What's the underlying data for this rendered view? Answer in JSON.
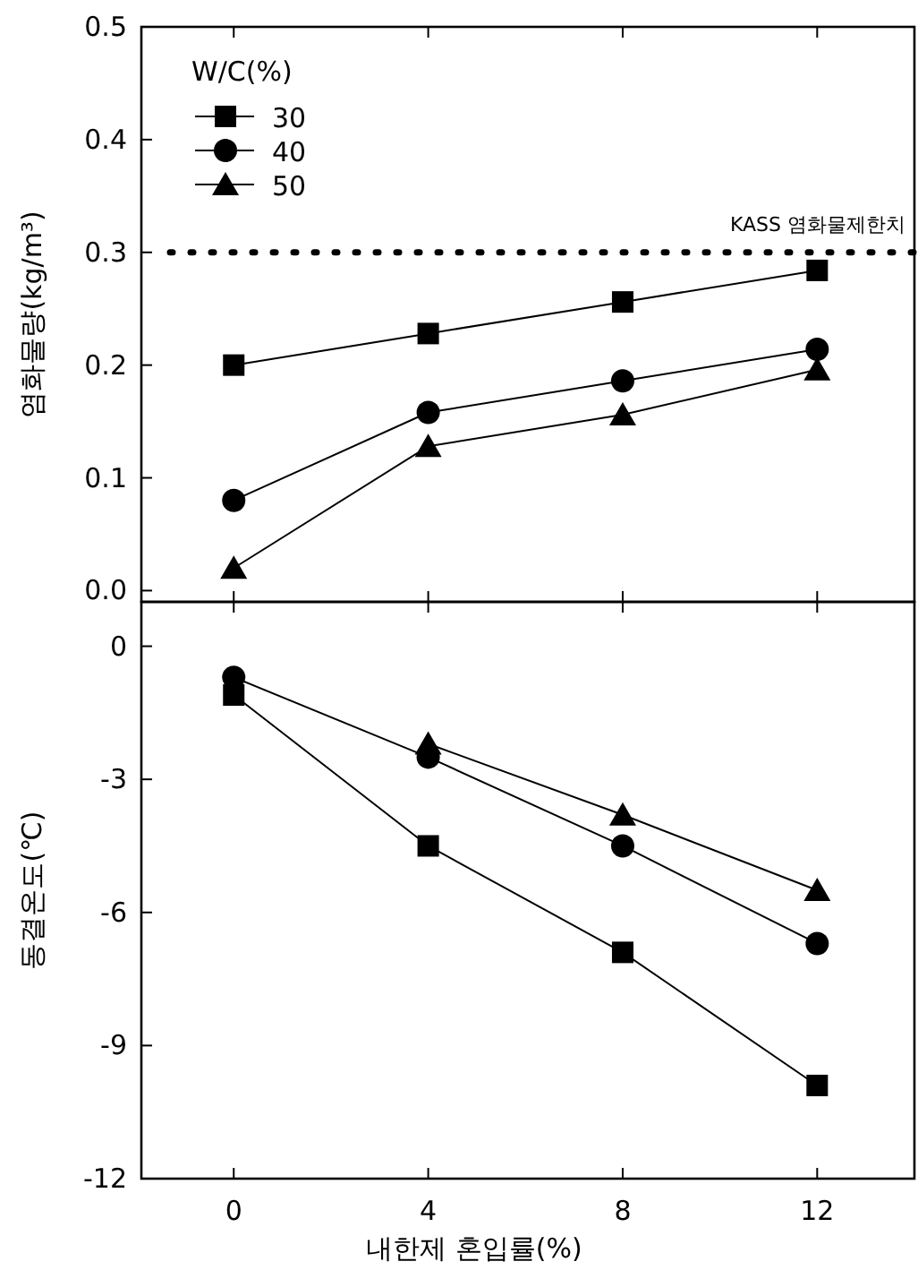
{
  "chart_data": [
    {
      "type": "line",
      "ylabel": "염화물량(kg/m³)",
      "legend_title": "W/C(%)",
      "legend": "top left",
      "tick_labels": "y",
      "x": [
        0,
        4,
        8,
        12
      ],
      "xlim": [
        -1.9,
        14
      ],
      "xticks": [
        {
          "value": 0,
          "label": null
        },
        {
          "value": 4,
          "label": null
        },
        {
          "value": 8,
          "label": null
        },
        {
          "value": 12,
          "label": null
        }
      ],
      "ylim": [
        -0.01,
        0.5
      ],
      "yticks": [
        {
          "value": 0,
          "label": "0.0"
        },
        {
          "value": 0.1,
          "label": "0.1"
        },
        {
          "value": 0.2,
          "label": "0.2"
        },
        {
          "value": 0.3,
          "label": "0.3"
        },
        {
          "value": 0.4,
          "label": "0.4"
        },
        {
          "value": 0.5,
          "label": "0.5"
        }
      ],
      "ref_lines": [
        {
          "axis": "y",
          "value": 0.3,
          "label": "KASS 염화물제한치",
          "color": "#000000",
          "line_style": "dotted"
        }
      ],
      "series": [
        {
          "name": "30",
          "color": "#000000",
          "marker": "square",
          "values": [
            0.2,
            0.228,
            0.256,
            0.284
          ]
        },
        {
          "name": "40",
          "color": "#000000",
          "marker": "circle",
          "values": [
            0.08,
            0.158,
            0.186,
            0.214
          ]
        },
        {
          "name": "50",
          "color": "#000000",
          "marker": "triangle",
          "values": [
            0.02,
            0.128,
            0.156,
            0.196
          ]
        }
      ]
    },
    {
      "type": "line",
      "ylabel": "동결온도(℃)",
      "xlabel": "내한제 혼입률(%)",
      "x": [
        0,
        4,
        8,
        12
      ],
      "xlim": [
        -1.9,
        14
      ],
      "xticks": [
        0,
        4,
        8,
        12
      ],
      "ylim": [
        -12,
        1
      ],
      "yticks": [
        0,
        -3,
        -6,
        -9,
        -12
      ],
      "series": [
        {
          "color": "#000000",
          "marker": "square",
          "values": [
            -1.1,
            -4.5,
            -6.9,
            -9.9
          ]
        },
        {
          "color": "#000000",
          "marker": "circle",
          "values": [
            -0.7,
            -2.5,
            -4.5,
            -6.7
          ]
        },
        {
          "color": "#000000",
          "marker": "triangle",
          "values": [
            null,
            -2.2,
            -3.8,
            -5.5
          ]
        }
      ]
    }
  ]
}
